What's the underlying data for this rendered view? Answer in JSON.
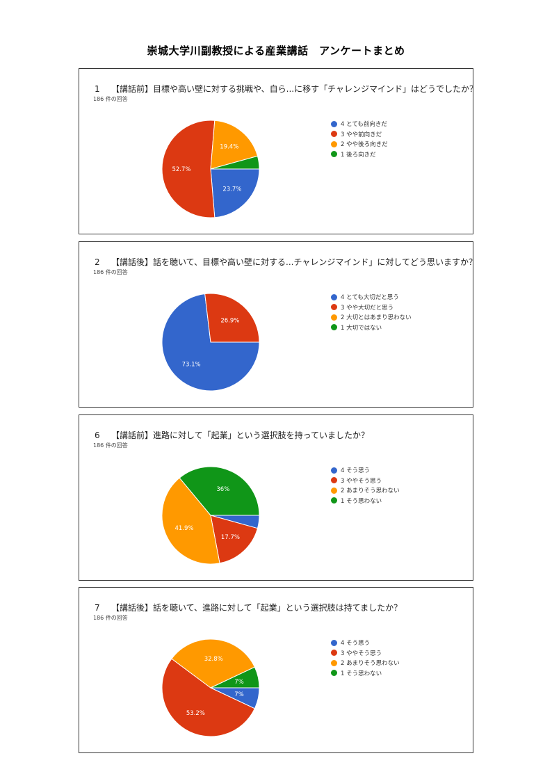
{
  "title": "崇城大学川副教授による産業講話　アンケートまとめ",
  "colors": [
    "#3366cc",
    "#dc3912",
    "#ff9900",
    "#109618"
  ],
  "chart_data": [
    {
      "type": "pie",
      "number": "1",
      "question": "【講話前】目標や高い壁に対する挑戦や、自ら...に移す「チャレンジマインド」はどうでしたか？",
      "responses": "186 件の回答",
      "categories": [
        "4 とても前向きだ",
        "3 やや前向きだ",
        "2 やや後ろ向きだ",
        "1 後ろ向きだ"
      ],
      "values": [
        23.7,
        52.7,
        19.4,
        4.3
      ],
      "labels": [
        "23.7%",
        "52.7%",
        "19.4%",
        ""
      ]
    },
    {
      "type": "pie",
      "number": "2",
      "question": "【講話後】話を聴いて、目標や高い壁に対する...チャレンジマインド」に対してどう思いますか？",
      "responses": "186 件の回答",
      "categories": [
        "4 とても大切だと思う",
        "3 やや大切だと思う",
        "2 大切とはあまり思わない",
        "1 大切ではない"
      ],
      "values": [
        73.1,
        26.9,
        0,
        0
      ],
      "labels": [
        "73.1%",
        "26.9%",
        "",
        ""
      ]
    },
    {
      "type": "pie",
      "number": "6",
      "question": "【講話前】進路に対して「起業」という選択肢を持っていましたか？",
      "responses": "186 件の回答",
      "categories": [
        "4 そう思う",
        "3 ややそう思う",
        "2 あまりそう思わない",
        "1 そう思わない"
      ],
      "values": [
        4.3,
        17.7,
        41.9,
        36
      ],
      "labels": [
        "",
        "17.7%",
        "41.9%",
        "36%"
      ]
    },
    {
      "type": "pie",
      "number": "7",
      "question": "【講話後】話を聴いて、進路に対して「起業」という選択肢は持てましたか？",
      "responses": "186 件の回答",
      "categories": [
        "4 そう思う",
        "3 ややそう思う",
        "2 あまりそう思わない",
        "1 そう思わない"
      ],
      "values": [
        7,
        53.2,
        32.8,
        7
      ],
      "labels": [
        "7%",
        "53.2%",
        "32.8%",
        "7%"
      ]
    }
  ]
}
